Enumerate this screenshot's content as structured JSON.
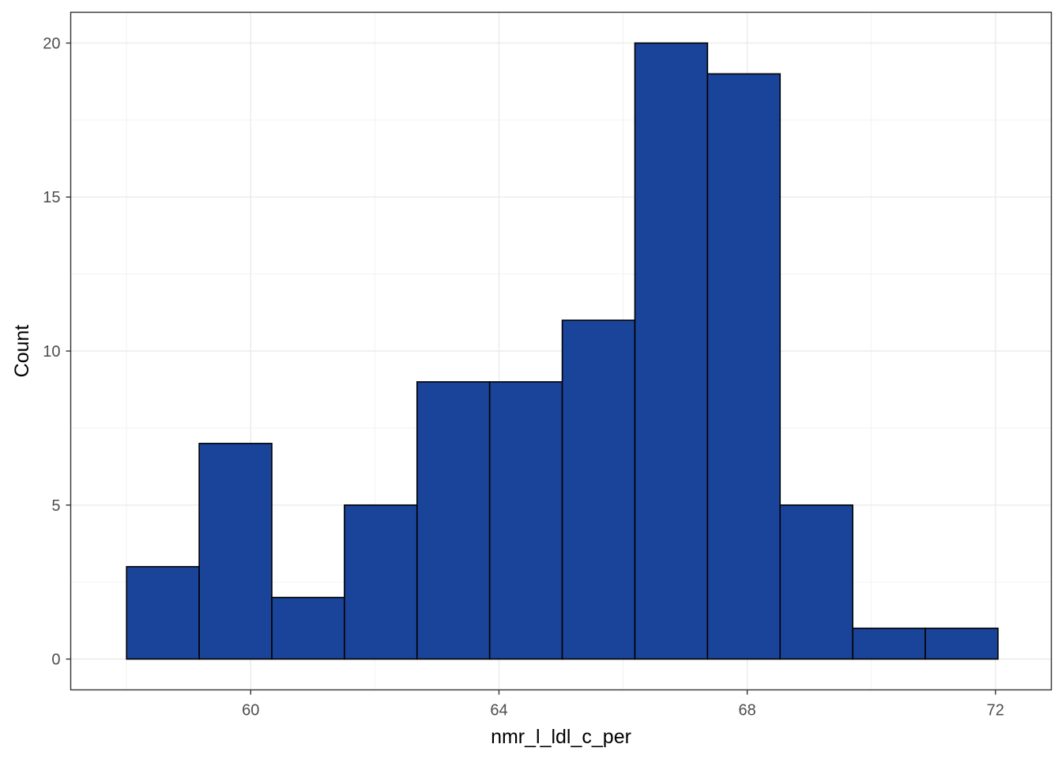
{
  "chart_data": {
    "type": "bar",
    "subtype": "histogram",
    "bin_edges": [
      58.0,
      59.17,
      60.34,
      61.51,
      62.68,
      63.85,
      65.02,
      66.19,
      67.36,
      68.53,
      69.7,
      70.87,
      72.04
    ],
    "values": [
      3,
      7,
      2,
      5,
      9,
      9,
      11,
      20,
      19,
      5,
      1,
      1
    ],
    "xlabel": "nmr_l_ldl_c_per",
    "ylabel": "Count",
    "xlim": [
      57.1,
      72.9
    ],
    "ylim": [
      -1,
      21
    ],
    "x_ticks": [
      60,
      64,
      68,
      72
    ],
    "x_tick_labels": [
      "60",
      "64",
      "68",
      "72"
    ],
    "y_ticks": [
      0,
      5,
      10,
      15,
      20
    ],
    "y_tick_labels": [
      "0",
      "5",
      "10",
      "15",
      "20"
    ],
    "grid": true,
    "legend": "none",
    "bar_color": "#1a4499",
    "bar_edge_color": "#000000"
  }
}
